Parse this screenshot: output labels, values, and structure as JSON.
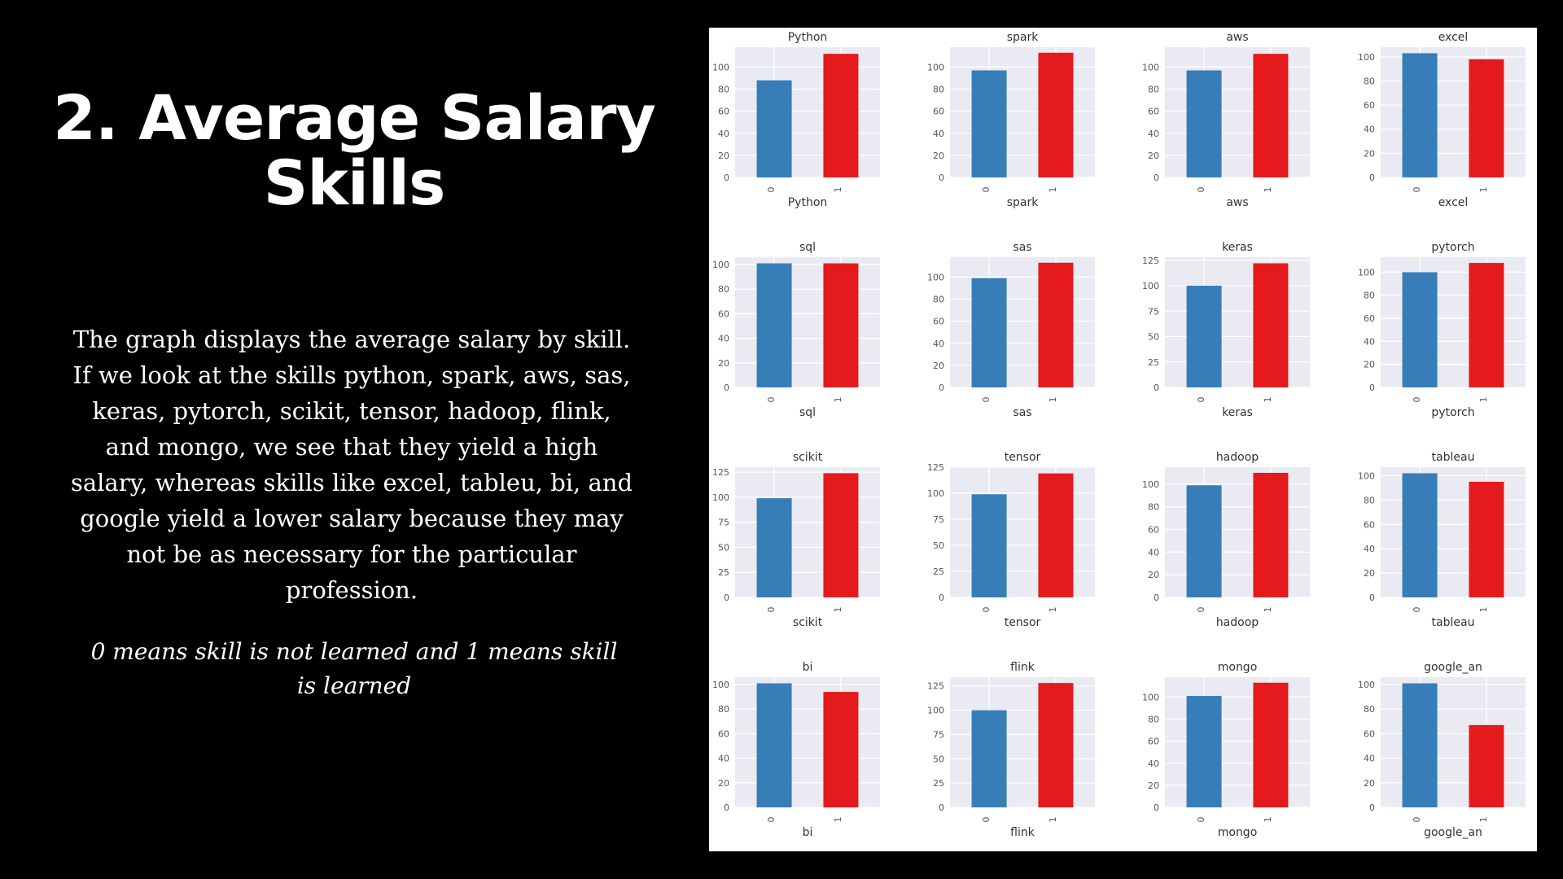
{
  "slide": {
    "title": "2. Average Salary Skills",
    "body": "The graph displays the average salary by skill. If we look at the skills python, spark, aws, sas, keras, pytorch, scikit, tensor, hadoop, flink, and mongo, we see that they yield a high salary, whereas skills like excel, tableu, bi, and google yield a lower salary because they may not be as necessary for the particular profession.",
    "note": "0 means skill is not learned and 1 means skill is learned"
  },
  "colors": {
    "background": "#000000",
    "text": "#ffffff",
    "panel": "#ffffff",
    "plot_bg": "#EAEAF2",
    "grid": "#ffffff",
    "bar_0": "#377EB8",
    "bar_1": "#E41A1C",
    "axis_text": "#555555"
  },
  "chart_data": [
    {
      "type": "bar",
      "title": "Python",
      "xlabel": "Python",
      "categories": [
        "0",
        "1"
      ],
      "values": [
        88,
        112
      ],
      "ylim": [
        0,
        118
      ],
      "yticks": [
        0,
        20,
        40,
        60,
        80,
        100
      ]
    },
    {
      "type": "bar",
      "title": "spark",
      "xlabel": "spark",
      "categories": [
        "0",
        "1"
      ],
      "values": [
        97,
        113
      ],
      "ylim": [
        0,
        118
      ],
      "yticks": [
        0,
        20,
        40,
        60,
        80,
        100
      ]
    },
    {
      "type": "bar",
      "title": "aws",
      "xlabel": "aws",
      "categories": [
        "0",
        "1"
      ],
      "values": [
        97,
        112
      ],
      "ylim": [
        0,
        118
      ],
      "yticks": [
        0,
        20,
        40,
        60,
        80,
        100
      ]
    },
    {
      "type": "bar",
      "title": "excel",
      "xlabel": "excel",
      "categories": [
        "0",
        "1"
      ],
      "values": [
        103,
        98
      ],
      "ylim": [
        0,
        108
      ],
      "yticks": [
        0,
        20,
        40,
        60,
        80,
        100
      ]
    },
    {
      "type": "bar",
      "title": "sql",
      "xlabel": "sql",
      "categories": [
        "0",
        "1"
      ],
      "values": [
        101,
        101
      ],
      "ylim": [
        0,
        106
      ],
      "yticks": [
        0,
        20,
        40,
        60,
        80,
        100
      ]
    },
    {
      "type": "bar",
      "title": "sas",
      "xlabel": "sas",
      "categories": [
        "0",
        "1"
      ],
      "values": [
        99,
        113
      ],
      "ylim": [
        0,
        118
      ],
      "yticks": [
        0,
        20,
        40,
        60,
        80,
        100
      ]
    },
    {
      "type": "bar",
      "title": "keras",
      "xlabel": "keras",
      "categories": [
        "0",
        "1"
      ],
      "values": [
        100,
        122
      ],
      "ylim": [
        0,
        128
      ],
      "yticks": [
        0,
        25,
        50,
        75,
        100,
        125
      ]
    },
    {
      "type": "bar",
      "title": "pytorch",
      "xlabel": "pytorch",
      "categories": [
        "0",
        "1"
      ],
      "values": [
        100,
        108
      ],
      "ylim": [
        0,
        113
      ],
      "yticks": [
        0,
        20,
        40,
        60,
        80,
        100
      ]
    },
    {
      "type": "bar",
      "title": "scikit",
      "xlabel": "scikit",
      "categories": [
        "0",
        "1"
      ],
      "values": [
        99,
        124
      ],
      "ylim": [
        0,
        130
      ],
      "yticks": [
        0,
        25,
        50,
        75,
        100,
        125
      ]
    },
    {
      "type": "bar",
      "title": "tensor",
      "xlabel": "tensor",
      "categories": [
        "0",
        "1"
      ],
      "values": [
        99,
        119
      ],
      "ylim": [
        0,
        125
      ],
      "yticks": [
        0,
        25,
        50,
        75,
        100,
        125
      ]
    },
    {
      "type": "bar",
      "title": "hadoop",
      "xlabel": "hadoop",
      "categories": [
        "0",
        "1"
      ],
      "values": [
        99,
        110
      ],
      "ylim": [
        0,
        115
      ],
      "yticks": [
        0,
        20,
        40,
        60,
        80,
        100
      ]
    },
    {
      "type": "bar",
      "title": "tableau",
      "xlabel": "tableau",
      "categories": [
        "0",
        "1"
      ],
      "values": [
        102,
        95
      ],
      "ylim": [
        0,
        107
      ],
      "yticks": [
        0,
        20,
        40,
        60,
        80,
        100
      ]
    },
    {
      "type": "bar",
      "title": "bi",
      "xlabel": "bi",
      "categories": [
        "0",
        "1"
      ],
      "values": [
        101,
        94
      ],
      "ylim": [
        0,
        106
      ],
      "yticks": [
        0,
        20,
        40,
        60,
        80,
        100
      ]
    },
    {
      "type": "bar",
      "title": "flink",
      "xlabel": "flink",
      "categories": [
        "0",
        "1"
      ],
      "values": [
        100,
        128
      ],
      "ylim": [
        0,
        134
      ],
      "yticks": [
        0,
        25,
        50,
        75,
        100,
        125
      ]
    },
    {
      "type": "bar",
      "title": "mongo",
      "xlabel": "mongo",
      "categories": [
        "0",
        "1"
      ],
      "values": [
        101,
        113
      ],
      "ylim": [
        0,
        118
      ],
      "yticks": [
        0,
        20,
        40,
        60,
        80,
        100
      ]
    },
    {
      "type": "bar",
      "title": "google_an",
      "xlabel": "google_an",
      "categories": [
        "0",
        "1"
      ],
      "values": [
        101,
        67
      ],
      "ylim": [
        0,
        106
      ],
      "yticks": [
        0,
        20,
        40,
        60,
        80,
        100
      ]
    }
  ]
}
